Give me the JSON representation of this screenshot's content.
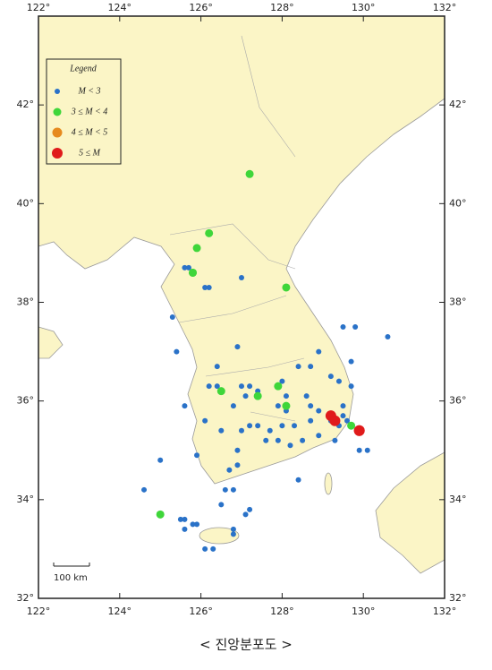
{
  "chart_data": {
    "type": "scatter",
    "caption": "< 진앙분포도 >",
    "legend_title": "Legend",
    "scale_bar_label": "100 km",
    "xlim": [
      122,
      132
    ],
    "ylim": [
      32,
      43.8
    ],
    "xticks": [
      {
        "value": 122,
        "label": "122°"
      },
      {
        "value": 124,
        "label": "124°"
      },
      {
        "value": 126,
        "label": "126°"
      },
      {
        "value": 128,
        "label": "128°"
      },
      {
        "value": 130,
        "label": "130°"
      },
      {
        "value": 132,
        "label": "132°"
      }
    ],
    "yticks": [
      {
        "value": 32,
        "label": "32°"
      },
      {
        "value": 34,
        "label": "34°"
      },
      {
        "value": 36,
        "label": "36°"
      },
      {
        "value": 38,
        "label": "38°"
      },
      {
        "value": 40,
        "label": "40°"
      },
      {
        "value": 42,
        "label": "42°"
      }
    ],
    "legend": "upper left",
    "series": [
      {
        "name": "M < 3",
        "color": "#2a72c8",
        "x": [
          127.0,
          125.6,
          125.7,
          126.1,
          126.2,
          125.3,
          125.4,
          126.9,
          129.5,
          129.8,
          130.6,
          128.9,
          126.4,
          128.4,
          128.7,
          129.7,
          125.6,
          126.2,
          126.4,
          127.0,
          127.2,
          127.1,
          127.4,
          126.8,
          128.0,
          128.1,
          127.9,
          128.1,
          128.6,
          128.7,
          129.2,
          129.4,
          129.7,
          129.5,
          129.5,
          129.6,
          129.2,
          129.4,
          128.9,
          127.4,
          127.7,
          128.0,
          128.3,
          128.7,
          126.1,
          126.5,
          127.0,
          127.2,
          126.9,
          127.6,
          127.9,
          128.2,
          128.5,
          128.9,
          129.3,
          126.7,
          126.9,
          126.6,
          126.8,
          125.0,
          128.4,
          124.6,
          126.5,
          127.2,
          127.1,
          125.6,
          125.8,
          125.9,
          125.5,
          125.6,
          126.1,
          126.3,
          126.8,
          126.8,
          129.9,
          130.1,
          125.9
        ],
        "values": [
          38.5,
          38.7,
          38.7,
          38.3,
          38.3,
          37.7,
          37.0,
          37.1,
          37.5,
          37.5,
          37.3,
          37.0,
          36.7,
          36.7,
          36.7,
          36.8,
          35.9,
          36.3,
          36.3,
          36.3,
          36.3,
          36.1,
          36.2,
          35.9,
          36.4,
          36.1,
          35.9,
          35.8,
          36.1,
          35.9,
          36.5,
          36.4,
          36.3,
          35.9,
          35.7,
          35.6,
          35.6,
          35.5,
          35.8,
          35.5,
          35.4,
          35.5,
          35.5,
          35.6,
          35.6,
          35.4,
          35.4,
          35.5,
          35.0,
          35.2,
          35.2,
          35.1,
          35.2,
          35.3,
          35.2,
          34.6,
          34.7,
          34.2,
          34.2,
          34.8,
          34.4,
          34.2,
          33.9,
          33.8,
          33.7,
          33.6,
          33.5,
          33.5,
          33.6,
          33.4,
          33.0,
          33.0,
          33.4,
          33.3,
          35.0,
          35.0,
          34.9
        ]
      },
      {
        "name": "3 ≤ M < 4",
        "color": "#3fd63a",
        "x": [
          127.2,
          126.2,
          125.9,
          125.8,
          125.8,
          128.1,
          126.5,
          127.4,
          127.9,
          128.1,
          125.0,
          129.7
        ],
        "values": [
          40.6,
          39.4,
          39.1,
          38.6,
          38.6,
          38.3,
          36.2,
          36.1,
          36.3,
          35.9,
          33.7,
          35.5
        ]
      },
      {
        "name": "4 ≤ M < 5",
        "color": "#e68a1e",
        "x": [],
        "values": []
      },
      {
        "name": "5 ≤ M",
        "color": "#e01b1b",
        "x": [
          129.2,
          129.3,
          129.9,
          129.9
        ],
        "values": [
          35.7,
          35.6,
          35.4,
          35.4
        ]
      }
    ]
  }
}
